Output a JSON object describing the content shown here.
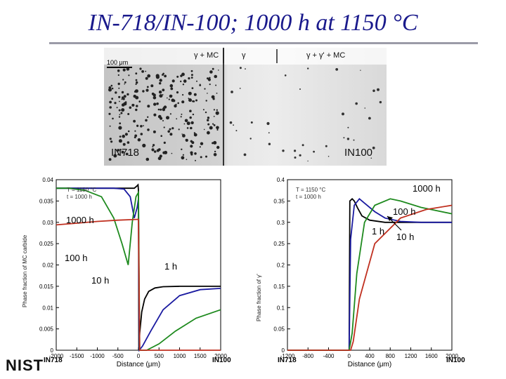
{
  "slide": {
    "title": "IN-718/IN-100; 1000 h at 1150 °C",
    "logo": "NIST"
  },
  "micrograph": {
    "phase_labels": [
      "γ + MC",
      "γ",
      "γ + γ' + MC"
    ],
    "scale_bar": "100 μm",
    "left_alloy": "IN718",
    "right_alloy": "IN100"
  },
  "chart_data": [
    {
      "type": "line",
      "xlabel": "Distance (μm)",
      "ylabel": "Phase fraction of MC carbide",
      "xlim": [
        -2000,
        2000
      ],
      "ylim": [
        0,
        0.04
      ],
      "xticks": [
        "-2000",
        "-1500",
        "-1000",
        "-500",
        "0",
        "500",
        "1000",
        "1500",
        "2000"
      ],
      "yticks": [
        "0",
        "0.005",
        "0.01",
        "0.015",
        "0.02",
        "0.025",
        "0.03",
        "0.035",
        "0.04"
      ],
      "legend_text": [
        "T = 1150 °C",
        "t = 1000 h"
      ],
      "left_end_label": "IN718",
      "right_end_label": "IN100",
      "annotations": [
        "1000 h",
        "100 h",
        "10 h",
        "1 h"
      ],
      "series": [
        {
          "name": "1 h",
          "color": "#000000",
          "x": [
            -2000,
            -100,
            -40,
            -10,
            0,
            10,
            30,
            80,
            150,
            250,
            400,
            600,
            1000,
            2000
          ],
          "y": [
            0.038,
            0.038,
            0.0385,
            0.0388,
            0.0375,
            0.0,
            0.004,
            0.009,
            0.012,
            0.0138,
            0.0146,
            0.0149,
            0.015,
            0.015
          ]
        },
        {
          "name": "10 h",
          "color": "#1a1aa0",
          "x": [
            -2000,
            -600,
            -350,
            -200,
            -100,
            -30,
            0,
            20,
            100,
            300,
            600,
            1000,
            1500,
            2000
          ],
          "y": [
            0.038,
            0.038,
            0.0378,
            0.036,
            0.031,
            0.0335,
            0.0355,
            0.0,
            0.001,
            0.0045,
            0.0095,
            0.0128,
            0.0142,
            0.0145
          ]
        },
        {
          "name": "100 h",
          "color": "#1e8a1e",
          "x": [
            -2000,
            -1700,
            -1300,
            -900,
            -600,
            -400,
            -250,
            -150,
            -60,
            0,
            30,
            200,
            500,
            900,
            1400,
            2000
          ],
          "y": [
            0.038,
            0.038,
            0.0375,
            0.036,
            0.031,
            0.025,
            0.02,
            0.03,
            0.036,
            0.037,
            0.0,
            0.0,
            0.0015,
            0.0045,
            0.0075,
            0.0095
          ]
        },
        {
          "name": "1000 h",
          "color": "#c03020",
          "x": [
            -2000,
            -1500,
            -1000,
            -500,
            0,
            30,
            60,
            200,
            700,
            1400,
            2000
          ],
          "y": [
            0.0294,
            0.0298,
            0.0302,
            0.0305,
            0.0307,
            0.0,
            0.0,
            0.0,
            0.0,
            0.0,
            0.0
          ]
        }
      ]
    },
    {
      "type": "line",
      "xlabel": "Distance (μm)",
      "ylabel": "Phase fraction of γ'",
      "xlim": [
        -1200,
        2000
      ],
      "ylim": [
        0,
        0.4
      ],
      "xticks": [
        "-1200",
        "-800",
        "-400",
        "0",
        "400",
        "800",
        "1200",
        "1600",
        "2000"
      ],
      "yticks": [
        "0",
        "0.05",
        "0.1",
        "0.15",
        "0.2",
        "0.25",
        "0.3",
        "0.35",
        "0.4"
      ],
      "legend_text": [
        "T = 1150 °C",
        "t = 1000 h"
      ],
      "left_end_label": "IN718",
      "right_end_label": "IN100",
      "annotations": [
        "1000 h",
        "100 h",
        "1 h",
        "10 h"
      ],
      "series": [
        {
          "name": "1 h",
          "color": "#000000",
          "x": [
            -1200,
            -15,
            0,
            15,
            60,
            100,
            160,
            250,
            400,
            700,
            1200,
            2000
          ],
          "y": [
            0,
            0,
            0,
            0.35,
            0.355,
            0.35,
            0.335,
            0.315,
            0.305,
            0.3,
            0.3,
            0.3
          ]
        },
        {
          "name": "10 h",
          "color": "#1a1aa0",
          "x": [
            -1200,
            -30,
            0,
            30,
            100,
            200,
            300,
            500,
            700,
            1000,
            1400,
            2000
          ],
          "y": [
            0,
            0,
            0,
            0.26,
            0.34,
            0.355,
            0.345,
            0.325,
            0.31,
            0.302,
            0.3,
            0.3
          ]
        },
        {
          "name": "100 h",
          "color": "#1e8a1e",
          "x": [
            -1200,
            -60,
            0,
            60,
            150,
            300,
            500,
            800,
            1000,
            1400,
            2000
          ],
          "y": [
            0,
            0,
            0,
            0.04,
            0.18,
            0.3,
            0.34,
            0.355,
            0.35,
            0.335,
            0.32
          ]
        },
        {
          "name": "1000 h",
          "color": "#c03020",
          "x": [
            -1200,
            -100,
            0,
            30,
            80,
            200,
            500,
            1000,
            1500,
            2000
          ],
          "y": [
            0,
            0,
            0,
            0.0,
            0.02,
            0.12,
            0.25,
            0.31,
            0.33,
            0.34
          ]
        }
      ]
    }
  ]
}
